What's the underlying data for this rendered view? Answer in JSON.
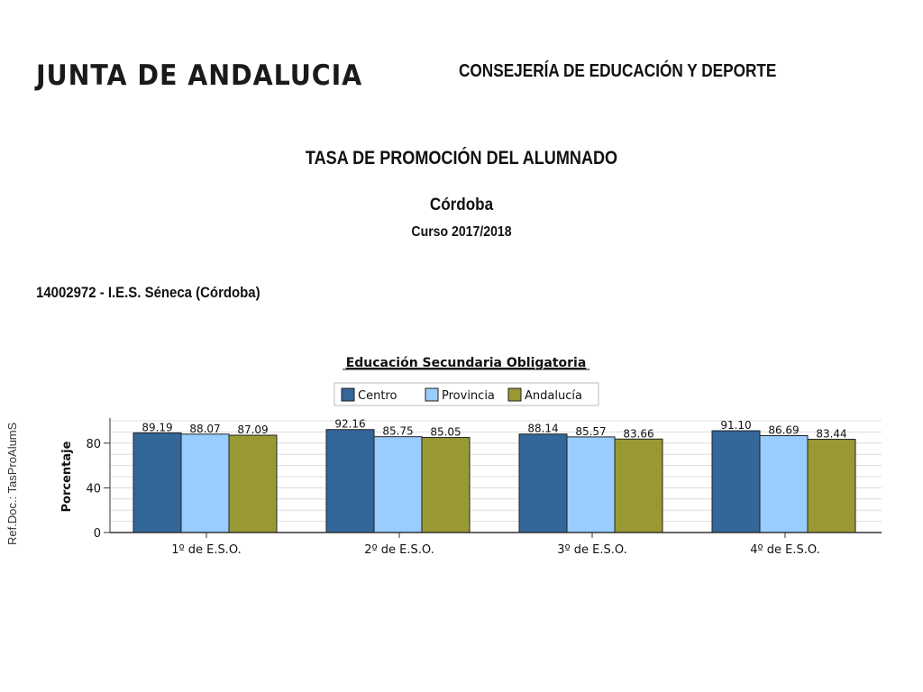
{
  "header": {
    "logo_text": "JUNTA DE ANDALUCIA",
    "department": "CONSEJERÍA DE EDUCACIÓN Y DEPORTE"
  },
  "report": {
    "title": "TASA DE PROMOCIÓN DEL ALUMNADO",
    "province": "Córdoba",
    "course": "Curso 2017/2018",
    "center": "14002972 - I.E.S. Séneca (Córdoba)"
  },
  "side_reference": "Ref.Doc.: TasProAlumS",
  "chart_data": {
    "type": "bar",
    "title": "Educación Secundaria Obligatoria",
    "ylabel": "Porcentaje",
    "xlabel": "",
    "ylim": [
      0,
      100
    ],
    "yticks": [
      0,
      40,
      80
    ],
    "grid": true,
    "legend_position": "top",
    "categories": [
      "1º de E.S.O.",
      "2º de E.S.O.",
      "3º de E.S.O.",
      "4º de E.S.O."
    ],
    "series": [
      {
        "name": "Centro",
        "color": "#336699",
        "values": [
          89.19,
          92.16,
          88.14,
          91.1
        ]
      },
      {
        "name": "Provincia",
        "color": "#99ccff",
        "values": [
          88.07,
          85.75,
          85.57,
          86.69
        ]
      },
      {
        "name": "Andalucía",
        "color": "#999933",
        "values": [
          87.09,
          85.05,
          83.66,
          83.44
        ]
      }
    ]
  }
}
